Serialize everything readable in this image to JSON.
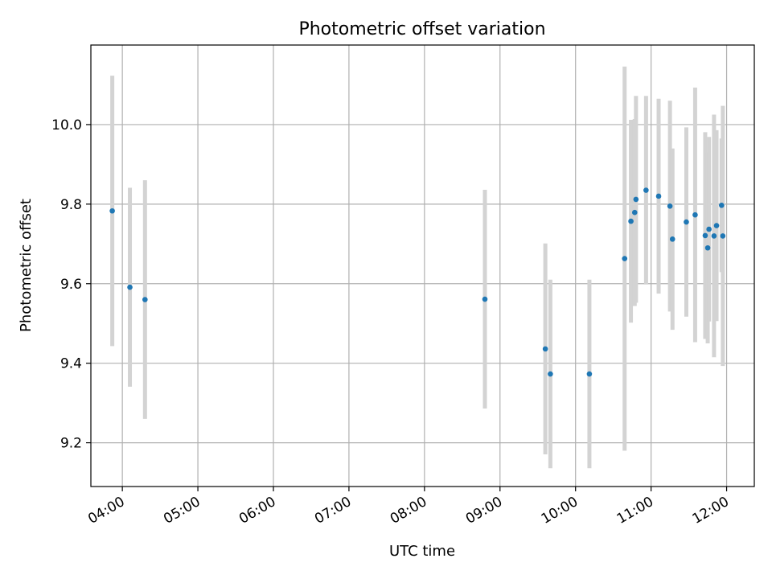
{
  "chart_data": {
    "type": "scatter",
    "title": "Photometric offset variation",
    "xlabel": "UTC time",
    "ylabel": "Photometric offset",
    "x_tick_labels": [
      "04:00",
      "05:00",
      "06:00",
      "07:00",
      "08:00",
      "09:00",
      "10:00",
      "11:00",
      "12:00"
    ],
    "y_tick_labels": [
      "9.2",
      "9.4",
      "9.6",
      "9.8",
      "10.0"
    ],
    "xlim": [
      "03:35",
      "12:22"
    ],
    "ylim": [
      9.09,
      10.2
    ],
    "grid": true,
    "colors": {
      "point": "#1f77b4",
      "errorbar": "#d3d3d3",
      "grid": "#b0b0b0"
    },
    "points": [
      {
        "x": "03:52",
        "y": 9.783,
        "yerr": 0.34
      },
      {
        "x": "04:06",
        "y": 9.591,
        "yerr": 0.25
      },
      {
        "x": "04:18",
        "y": 9.56,
        "yerr": 0.3
      },
      {
        "x": "08:48",
        "y": 9.561,
        "yerr": 0.275
      },
      {
        "x": "09:36",
        "y": 9.436,
        "yerr": 0.265
      },
      {
        "x": "09:40",
        "y": 9.373,
        "yerr": 0.237
      },
      {
        "x": "10:11",
        "y": 9.373,
        "yerr": 0.237
      },
      {
        "x": "10:39",
        "y": 9.663,
        "yerr": 0.483
      },
      {
        "x": "10:44",
        "y": 9.757,
        "yerr": 0.255
      },
      {
        "x": "10:47",
        "y": 9.779,
        "yerr": 0.235
      },
      {
        "x": "10:48",
        "y": 9.812,
        "yerr": 0.26
      },
      {
        "x": "10:56",
        "y": 9.835,
        "yerr": 0.237
      },
      {
        "x": "11:06",
        "y": 9.82,
        "yerr": 0.245
      },
      {
        "x": "11:15",
        "y": 9.795,
        "yerr": 0.265
      },
      {
        "x": "11:17",
        "y": 9.712,
        "yerr": 0.228
      },
      {
        "x": "11:28",
        "y": 9.755,
        "yerr": 0.238
      },
      {
        "x": "11:35",
        "y": 9.773,
        "yerr": 0.32
      },
      {
        "x": "11:43",
        "y": 9.721,
        "yerr": 0.26
      },
      {
        "x": "11:45",
        "y": 9.69,
        "yerr": 0.24
      },
      {
        "x": "11:46",
        "y": 9.737,
        "yerr": 0.232
      },
      {
        "x": "11:50",
        "y": 9.72,
        "yerr": 0.305
      },
      {
        "x": "11:52",
        "y": 9.746,
        "yerr": 0.24
      },
      {
        "x": "11:56",
        "y": 9.797,
        "yerr": 0.168
      },
      {
        "x": "11:57",
        "y": 9.72,
        "yerr": 0.327
      }
    ]
  }
}
